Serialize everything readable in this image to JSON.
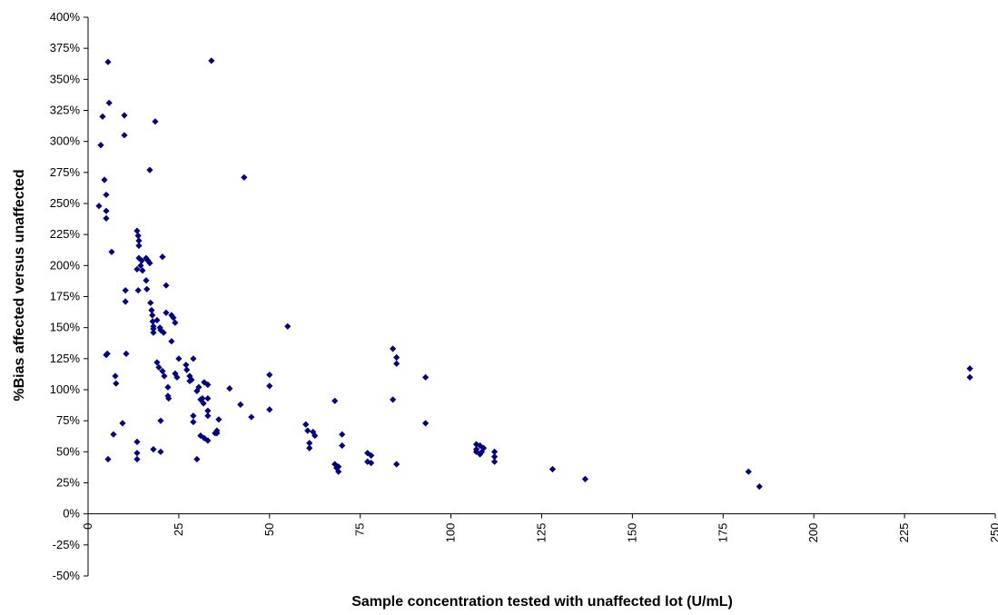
{
  "chart_data": {
    "type": "scatter",
    "xlabel": "Sample concentration tested with unaffected lot (U/mL)",
    "ylabel": "%Bias affected versus unaffected",
    "xlim": [
      0,
      250
    ],
    "ylim": [
      -50,
      400
    ],
    "x_ticks": [
      0,
      25,
      50,
      75,
      100,
      125,
      150,
      175,
      200,
      225,
      250
    ],
    "x_tick_labels": [
      "0",
      "25",
      "50",
      "75",
      "100",
      "125",
      "150",
      "175",
      "200",
      "225",
      "250"
    ],
    "y_ticks": [
      -50,
      -25,
      0,
      25,
      50,
      75,
      100,
      125,
      150,
      175,
      200,
      225,
      250,
      275,
      300,
      325,
      350,
      375,
      400
    ],
    "y_tick_labels": [
      "-50%",
      "-25%",
      "0%",
      "25%",
      "50%",
      "75%",
      "100%",
      "125%",
      "150%",
      "175%",
      "200%",
      "225%",
      "250%",
      "275%",
      "300%",
      "325%",
      "350%",
      "375%",
      "400%"
    ],
    "grid": false,
    "marker_color": "#000080",
    "marker": "diamond",
    "points": [
      [
        3,
        248
      ],
      [
        3.5,
        297
      ],
      [
        4,
        320
      ],
      [
        4.5,
        269
      ],
      [
        5,
        257
      ],
      [
        5,
        244
      ],
      [
        5,
        238
      ],
      [
        5,
        128
      ],
      [
        5.3,
        129
      ],
      [
        5.5,
        364
      ],
      [
        5.8,
        331
      ],
      [
        5.5,
        44
      ],
      [
        6.5,
        211
      ],
      [
        7,
        64
      ],
      [
        7.5,
        111
      ],
      [
        7.7,
        105
      ],
      [
        9.5,
        73
      ],
      [
        10,
        321
      ],
      [
        10,
        305
      ],
      [
        10.3,
        180
      ],
      [
        10.3,
        171
      ],
      [
        10.5,
        129
      ],
      [
        13.5,
        228
      ],
      [
        13.8,
        224
      ],
      [
        14,
        220
      ],
      [
        14,
        216
      ],
      [
        13.5,
        197
      ],
      [
        14,
        206
      ],
      [
        13.8,
        180
      ],
      [
        14.5,
        200
      ],
      [
        14.8,
        204
      ],
      [
        15,
        196
      ],
      [
        13.5,
        58
      ],
      [
        13.5,
        49
      ],
      [
        13.5,
        44
      ],
      [
        16,
        206
      ],
      [
        16,
        188
      ],
      [
        16.2,
        181
      ],
      [
        16.5,
        204
      ],
      [
        17,
        202
      ],
      [
        17,
        277
      ],
      [
        17.2,
        170
      ],
      [
        17.5,
        164
      ],
      [
        17.7,
        160
      ],
      [
        17.8,
        155
      ],
      [
        18,
        151
      ],
      [
        18,
        149
      ],
      [
        18,
        146
      ],
      [
        18.5,
        316
      ],
      [
        18,
        52
      ],
      [
        19,
        156
      ],
      [
        19,
        122
      ],
      [
        19.5,
        118
      ],
      [
        19.8,
        150
      ],
      [
        20,
        148
      ],
      [
        20,
        75
      ],
      [
        20,
        50
      ],
      [
        20.5,
        207
      ],
      [
        20.8,
        146
      ],
      [
        20.5,
        115
      ],
      [
        21,
        111
      ],
      [
        21.5,
        184
      ],
      [
        21.5,
        162
      ],
      [
        22,
        102
      ],
      [
        22,
        95
      ],
      [
        22.2,
        93
      ],
      [
        23,
        160
      ],
      [
        23,
        139
      ],
      [
        23.5,
        158
      ],
      [
        24,
        154
      ],
      [
        24,
        113
      ],
      [
        24.5,
        110
      ],
      [
        25,
        125
      ],
      [
        27,
        120
      ],
      [
        27.2,
        116
      ],
      [
        28,
        111
      ],
      [
        28,
        107
      ],
      [
        28.5,
        108
      ],
      [
        29,
        125
      ],
      [
        29,
        79
      ],
      [
        29,
        74
      ],
      [
        30,
        99
      ],
      [
        30,
        44
      ],
      [
        30.5,
        102
      ],
      [
        31,
        92
      ],
      [
        31,
        63
      ],
      [
        31.5,
        93
      ],
      [
        31.8,
        89
      ],
      [
        32,
        106
      ],
      [
        32,
        61
      ],
      [
        33,
        104
      ],
      [
        33,
        93
      ],
      [
        33,
        83
      ],
      [
        33,
        79
      ],
      [
        33,
        59
      ],
      [
        34,
        365
      ],
      [
        35,
        65
      ],
      [
        35.5,
        67
      ],
      [
        35.5,
        65
      ],
      [
        36,
        76
      ],
      [
        39,
        101
      ],
      [
        42,
        88
      ],
      [
        43,
        271
      ],
      [
        45,
        78
      ],
      [
        50,
        112
      ],
      [
        50,
        103
      ],
      [
        50,
        84
      ],
      [
        55,
        151
      ],
      [
        60,
        72
      ],
      [
        60.5,
        67
      ],
      [
        61,
        57
      ],
      [
        61,
        53
      ],
      [
        62,
        66
      ],
      [
        62.5,
        63
      ],
      [
        68,
        91
      ],
      [
        68,
        40
      ],
      [
        68.5,
        37
      ],
      [
        69,
        38
      ],
      [
        69,
        34
      ],
      [
        70,
        64
      ],
      [
        70,
        55
      ],
      [
        77,
        49
      ],
      [
        77,
        42
      ],
      [
        78,
        47
      ],
      [
        78,
        41
      ],
      [
        84,
        133
      ],
      [
        84,
        92
      ],
      [
        85,
        126
      ],
      [
        85,
        121
      ],
      [
        85,
        40
      ],
      [
        93,
        110
      ],
      [
        93,
        73
      ],
      [
        107,
        56
      ],
      [
        107,
        52
      ],
      [
        107,
        50
      ],
      [
        108,
        55
      ],
      [
        108,
        48
      ],
      [
        108.5,
        50
      ],
      [
        109,
        53
      ],
      [
        112,
        50
      ],
      [
        112,
        46
      ],
      [
        112,
        42
      ],
      [
        128,
        36
      ],
      [
        137,
        28
      ],
      [
        182,
        34
      ],
      [
        185,
        22
      ],
      [
        243,
        117
      ],
      [
        243,
        110
      ]
    ]
  }
}
